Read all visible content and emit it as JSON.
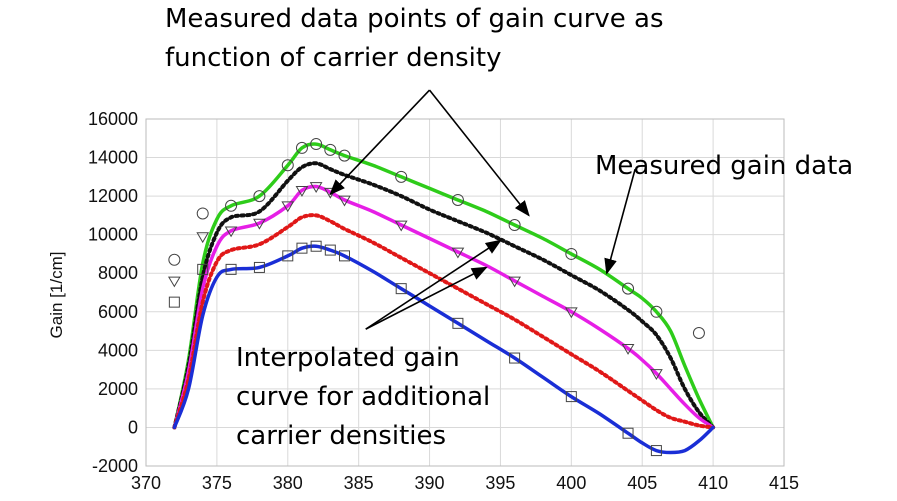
{
  "chart_data": {
    "type": "line",
    "title": "",
    "xlabel": "",
    "ylabel": "Gain [1/cm]",
    "xlim": [
      370,
      415
    ],
    "ylim": [
      -2000,
      16000
    ],
    "xticks": [
      "370",
      "375",
      "380",
      "385",
      "390",
      "395",
      "400",
      "405",
      "410",
      "415"
    ],
    "yticks": [
      "-2000",
      "0",
      "2000",
      "4000",
      "6000",
      "8000",
      "10000",
      "12000",
      "14000",
      "16000"
    ],
    "grid": true,
    "legend": "none",
    "series": [
      {
        "color": "#2ecc1a",
        "style": "solid",
        "marker": "circle",
        "kind": "measured",
        "x": [
          372,
          373,
          374,
          375,
          376,
          378,
          380,
          381,
          382,
          383,
          384,
          386,
          388,
          390,
          392,
          394,
          396,
          398,
          400,
          402,
          404,
          405,
          406,
          407,
          408,
          409,
          410
        ],
        "y": [
          0,
          3500,
          8500,
          10800,
          11500,
          12000,
          13600,
          14500,
          14700,
          14400,
          14100,
          13600,
          13000,
          12400,
          11800,
          11200,
          10500,
          9800,
          9000,
          8200,
          7200,
          6700,
          6000,
          5000,
          3200,
          1500,
          0
        ]
      },
      {
        "color": "#111111",
        "style": "dotted",
        "marker": "none",
        "kind": "interpolated",
        "x": [
          372,
          373,
          374,
          375,
          376,
          378,
          380,
          381,
          382,
          383,
          384,
          386,
          388,
          390,
          392,
          394,
          396,
          398,
          400,
          402,
          404,
          405,
          406,
          407,
          408,
          409,
          410
        ],
        "y": [
          0,
          3200,
          7800,
          10100,
          10900,
          11200,
          12800,
          13500,
          13700,
          13400,
          13100,
          12600,
          12000,
          11300,
          10700,
          10100,
          9400,
          8700,
          7900,
          7100,
          6100,
          5500,
          4800,
          3600,
          2000,
          800,
          0
        ]
      },
      {
        "color": "#e61ee6",
        "style": "solid",
        "marker": "triangle",
        "kind": "measured",
        "x": [
          372,
          373,
          374,
          375,
          376,
          378,
          380,
          381,
          382,
          383,
          384,
          386,
          388,
          390,
          392,
          394,
          396,
          398,
          400,
          402,
          404,
          405,
          406,
          407,
          408,
          409,
          410
        ],
        "y": [
          0,
          2900,
          7200,
          9400,
          10200,
          10600,
          11500,
          12300,
          12500,
          12200,
          11800,
          11200,
          10500,
          9800,
          9100,
          8400,
          7600,
          6800,
          6000,
          5100,
          4100,
          3500,
          2800,
          2000,
          1200,
          500,
          0
        ]
      },
      {
        "color": "#e01818",
        "style": "dotted",
        "marker": "none",
        "kind": "interpolated",
        "x": [
          372,
          373,
          374,
          375,
          376,
          378,
          380,
          381,
          382,
          383,
          384,
          386,
          388,
          390,
          392,
          394,
          396,
          398,
          400,
          402,
          404,
          405,
          406,
          407,
          408,
          409,
          410
        ],
        "y": [
          0,
          2500,
          6500,
          8600,
          9200,
          9500,
          10400,
          10900,
          11000,
          10700,
          10300,
          9600,
          8800,
          8000,
          7200,
          6400,
          5600,
          4700,
          3800,
          2900,
          1900,
          1400,
          900,
          500,
          300,
          100,
          0
        ]
      },
      {
        "color": "#1a2ed6",
        "style": "solid",
        "marker": "square",
        "kind": "measured",
        "x": [
          372,
          373,
          374,
          375,
          376,
          378,
          380,
          381,
          382,
          383,
          384,
          386,
          388,
          390,
          392,
          394,
          396,
          398,
          400,
          402,
          404,
          405,
          406,
          407,
          408,
          409,
          410
        ],
        "y": [
          0,
          2000,
          5800,
          7800,
          8200,
          8300,
          8900,
          9300,
          9400,
          9200,
          8900,
          8100,
          7200,
          6300,
          5400,
          4500,
          3600,
          2600,
          1600,
          700,
          -300,
          -800,
          -1200,
          -1300,
          -1200,
          -700,
          0
        ]
      }
    ],
    "outlier_points": [
      {
        "marker": "circle",
        "x": 372,
        "y": 8700
      },
      {
        "marker": "triangle",
        "x": 372,
        "y": 7600
      },
      {
        "marker": "square",
        "x": 372,
        "y": 6500
      },
      {
        "marker": "circle",
        "x": 374,
        "y": 11100
      },
      {
        "marker": "triangle",
        "x": 374,
        "y": 9900
      },
      {
        "marker": "square",
        "x": 374,
        "y": 8200
      },
      {
        "marker": "circle",
        "x": 409,
        "y": 4900
      }
    ],
    "annotations": [
      {
        "text": "Measured data points of gain curve as",
        "kind": "label"
      },
      {
        "text": "function of carrier density",
        "kind": "label"
      },
      {
        "text": "Measured gain data",
        "kind": "label"
      },
      {
        "text": "Interpolated gain",
        "kind": "label"
      },
      {
        "text": "curve for additional",
        "kind": "label"
      },
      {
        "text": "carrier densities",
        "kind": "label"
      }
    ],
    "arrows": [
      {
        "from": [
          390,
          17500
        ],
        "to": [
          383,
          12100
        ]
      },
      {
        "from": [
          390,
          17500
        ],
        "to": [
          397,
          11000
        ]
      },
      {
        "from": [
          404.5,
          13400
        ],
        "to": [
          402.5,
          8000
        ]
      },
      {
        "from": [
          385.5,
          5100
        ],
        "to": [
          395,
          9700
        ]
      },
      {
        "from": [
          385.5,
          5100
        ],
        "to": [
          394,
          8300
        ]
      }
    ]
  }
}
